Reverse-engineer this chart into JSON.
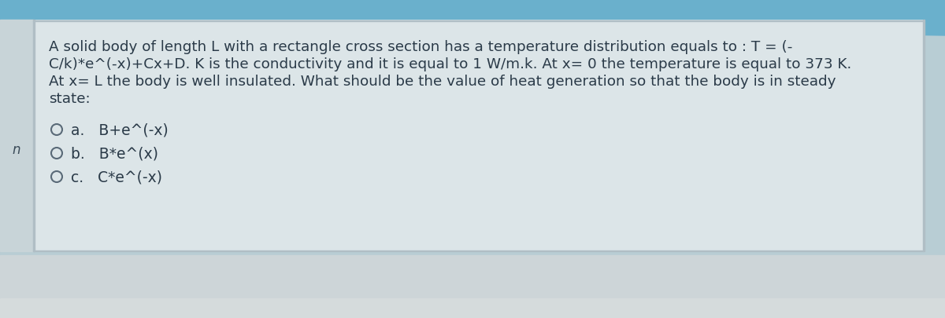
{
  "bg_color_top": "#6ab0cc",
  "bg_color_top2": "#8ec5d6",
  "bg_color_main": "#b8cdd4",
  "bg_color_bottom": "#d8dfe0",
  "bg_color_white_box": "#e8ecee",
  "left_panel_color": "#c8d4d8",
  "white_box_color": "#dde5e8",
  "question_text_line1": "A solid body of length L with a rectangle cross section has a temperature distribution equals to : T = (-",
  "question_text_line2": "C/k)*e^(-x)+Cx+D. K is the conductivity and it is equal to 1 W/m.k. At x= 0 the temperature is equal to 373 K.",
  "question_text_line3": "At x= L the body is well insulated. What should be the value of heat generation so that the body is in steady",
  "question_text_line4": "state:",
  "option_a": "B+e^(-x)",
  "option_b": "B*e^(x)",
  "option_c": "C*e^(-x)",
  "text_color": "#2a3a48",
  "circle_color": "#5a6a78",
  "font_size_question": 13.2,
  "font_size_options": 13.5,
  "sidebar_n_color": "#3a4a58"
}
